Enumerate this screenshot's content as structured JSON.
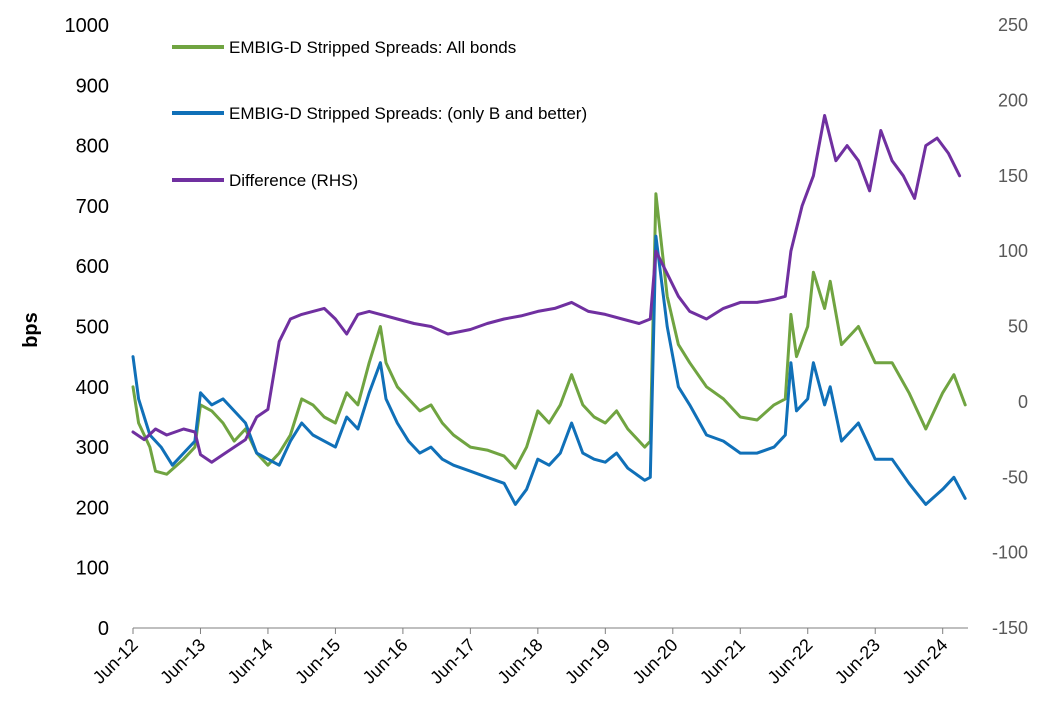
{
  "chart_data": {
    "type": "line",
    "title": "",
    "ylabel": "bps",
    "ylabel_right": "",
    "ylim": [
      0,
      1000
    ],
    "ylim_right": [
      -150,
      250
    ],
    "yticks_left": [
      "0",
      "100",
      "200",
      "300",
      "400",
      "500",
      "600",
      "700",
      "800",
      "900",
      "1000"
    ],
    "yticks_right": [
      "-150",
      "-100",
      "-50",
      "0",
      "50",
      "100",
      "150",
      "200",
      "250"
    ],
    "x_labels": [
      "Jun-12",
      "Jun-13",
      "Jun-14",
      "Jun-15",
      "Jun-16",
      "Jun-17",
      "Jun-18",
      "Jun-19",
      "Jun-20",
      "Jun-21",
      "Jun-22",
      "Jun-23",
      "Jun-24"
    ],
    "grid": false,
    "legend_position": "top-left",
    "series": [
      {
        "name": "EMBIG-D Stripped Spreads: All bonds",
        "axis": "left",
        "color": "#70a441",
        "points": [
          [
            "2012-06",
            400
          ],
          [
            "2012-07",
            340
          ],
          [
            "2012-09",
            300
          ],
          [
            "2012-10",
            260
          ],
          [
            "2012-12",
            255
          ],
          [
            "2013-03",
            280
          ],
          [
            "2013-05",
            300
          ],
          [
            "2013-06",
            370
          ],
          [
            "2013-08",
            360
          ],
          [
            "2013-10",
            340
          ],
          [
            "2013-12",
            310
          ],
          [
            "2014-02",
            330
          ],
          [
            "2014-04",
            290
          ],
          [
            "2014-06",
            270
          ],
          [
            "2014-08",
            290
          ],
          [
            "2014-10",
            320
          ],
          [
            "2014-12",
            380
          ],
          [
            "2015-02",
            370
          ],
          [
            "2015-04",
            350
          ],
          [
            "2015-06",
            340
          ],
          [
            "2015-08",
            390
          ],
          [
            "2015-10",
            370
          ],
          [
            "2015-12",
            440
          ],
          [
            "2016-02",
            500
          ],
          [
            "2016-03",
            440
          ],
          [
            "2016-05",
            400
          ],
          [
            "2016-07",
            380
          ],
          [
            "2016-09",
            360
          ],
          [
            "2016-11",
            370
          ],
          [
            "2017-01",
            340
          ],
          [
            "2017-03",
            320
          ],
          [
            "2017-06",
            300
          ],
          [
            "2017-09",
            295
          ],
          [
            "2017-12",
            285
          ],
          [
            "2018-02",
            265
          ],
          [
            "2018-04",
            300
          ],
          [
            "2018-06",
            360
          ],
          [
            "2018-08",
            340
          ],
          [
            "2018-10",
            370
          ],
          [
            "2018-12",
            420
          ],
          [
            "2019-02",
            370
          ],
          [
            "2019-04",
            350
          ],
          [
            "2019-06",
            340
          ],
          [
            "2019-08",
            360
          ],
          [
            "2019-10",
            330
          ],
          [
            "2020-01",
            300
          ],
          [
            "2020-02",
            310
          ],
          [
            "2020-03",
            720
          ],
          [
            "2020-05",
            550
          ],
          [
            "2020-07",
            470
          ],
          [
            "2020-09",
            440
          ],
          [
            "2020-12",
            400
          ],
          [
            "2021-03",
            380
          ],
          [
            "2021-06",
            350
          ],
          [
            "2021-09",
            345
          ],
          [
            "2021-12",
            370
          ],
          [
            "2022-02",
            380
          ],
          [
            "2022-03",
            520
          ],
          [
            "2022-04",
            450
          ],
          [
            "2022-06",
            500
          ],
          [
            "2022-07",
            590
          ],
          [
            "2022-09",
            530
          ],
          [
            "2022-10",
            575
          ],
          [
            "2022-12",
            470
          ],
          [
            "2023-03",
            500
          ],
          [
            "2023-06",
            440
          ],
          [
            "2023-09",
            440
          ],
          [
            "2023-12",
            390
          ],
          [
            "2024-03",
            330
          ],
          [
            "2024-06",
            390
          ],
          [
            "2024-08",
            420
          ],
          [
            "2024-10",
            370
          ]
        ]
      },
      {
        "name": "EMBIG-D Stripped Spreads: (only B and better)",
        "axis": "left",
        "color": "#1070b8",
        "points": [
          [
            "2012-06",
            450
          ],
          [
            "2012-07",
            380
          ],
          [
            "2012-09",
            320
          ],
          [
            "2012-11",
            300
          ],
          [
            "2013-01",
            270
          ],
          [
            "2013-03",
            290
          ],
          [
            "2013-05",
            310
          ],
          [
            "2013-06",
            390
          ],
          [
            "2013-08",
            370
          ],
          [
            "2013-10",
            380
          ],
          [
            "2013-12",
            360
          ],
          [
            "2014-02",
            340
          ],
          [
            "2014-04",
            290
          ],
          [
            "2014-06",
            280
          ],
          [
            "2014-08",
            270
          ],
          [
            "2014-10",
            310
          ],
          [
            "2014-12",
            340
          ],
          [
            "2015-02",
            320
          ],
          [
            "2015-04",
            310
          ],
          [
            "2015-06",
            300
          ],
          [
            "2015-08",
            350
          ],
          [
            "2015-10",
            330
          ],
          [
            "2015-12",
            390
          ],
          [
            "2016-02",
            440
          ],
          [
            "2016-03",
            380
          ],
          [
            "2016-05",
            340
          ],
          [
            "2016-07",
            310
          ],
          [
            "2016-09",
            290
          ],
          [
            "2016-11",
            300
          ],
          [
            "2017-01",
            280
          ],
          [
            "2017-03",
            270
          ],
          [
            "2017-06",
            260
          ],
          [
            "2017-09",
            250
          ],
          [
            "2017-12",
            240
          ],
          [
            "2018-02",
            205
          ],
          [
            "2018-04",
            230
          ],
          [
            "2018-06",
            280
          ],
          [
            "2018-08",
            270
          ],
          [
            "2018-10",
            290
          ],
          [
            "2018-12",
            340
          ],
          [
            "2019-02",
            290
          ],
          [
            "2019-04",
            280
          ],
          [
            "2019-06",
            275
          ],
          [
            "2019-08",
            290
          ],
          [
            "2019-10",
            265
          ],
          [
            "2020-01",
            245
          ],
          [
            "2020-02",
            250
          ],
          [
            "2020-03",
            650
          ],
          [
            "2020-05",
            500
          ],
          [
            "2020-07",
            400
          ],
          [
            "2020-09",
            370
          ],
          [
            "2020-12",
            320
          ],
          [
            "2021-03",
            310
          ],
          [
            "2021-06",
            290
          ],
          [
            "2021-09",
            290
          ],
          [
            "2021-12",
            300
          ],
          [
            "2022-02",
            320
          ],
          [
            "2022-03",
            440
          ],
          [
            "2022-04",
            360
          ],
          [
            "2022-06",
            380
          ],
          [
            "2022-07",
            440
          ],
          [
            "2022-09",
            370
          ],
          [
            "2022-10",
            400
          ],
          [
            "2022-12",
            310
          ],
          [
            "2023-03",
            340
          ],
          [
            "2023-06",
            280
          ],
          [
            "2023-09",
            280
          ],
          [
            "2023-12",
            240
          ],
          [
            "2024-03",
            205
          ],
          [
            "2024-06",
            230
          ],
          [
            "2024-08",
            250
          ],
          [
            "2024-10",
            215
          ]
        ]
      },
      {
        "name": "Difference (RHS)",
        "axis": "right",
        "color": "#7030a0",
        "points": [
          [
            "2012-06",
            -20
          ],
          [
            "2012-08",
            -25
          ],
          [
            "2012-10",
            -18
          ],
          [
            "2012-12",
            -22
          ],
          [
            "2013-03",
            -18
          ],
          [
            "2013-05",
            -20
          ],
          [
            "2013-06",
            -35
          ],
          [
            "2013-08",
            -40
          ],
          [
            "2013-10",
            -35
          ],
          [
            "2013-12",
            -30
          ],
          [
            "2014-02",
            -25
          ],
          [
            "2014-04",
            -10
          ],
          [
            "2014-06",
            -5
          ],
          [
            "2014-08",
            40
          ],
          [
            "2014-10",
            55
          ],
          [
            "2014-12",
            58
          ],
          [
            "2015-02",
            60
          ],
          [
            "2015-04",
            62
          ],
          [
            "2015-06",
            55
          ],
          [
            "2015-08",
            45
          ],
          [
            "2015-10",
            58
          ],
          [
            "2015-12",
            60
          ],
          [
            "2016-02",
            58
          ],
          [
            "2016-05",
            55
          ],
          [
            "2016-08",
            52
          ],
          [
            "2016-11",
            50
          ],
          [
            "2017-02",
            45
          ],
          [
            "2017-06",
            48
          ],
          [
            "2017-09",
            52
          ],
          [
            "2017-12",
            55
          ],
          [
            "2018-03",
            57
          ],
          [
            "2018-06",
            60
          ],
          [
            "2018-09",
            62
          ],
          [
            "2018-12",
            66
          ],
          [
            "2019-03",
            60
          ],
          [
            "2019-06",
            58
          ],
          [
            "2019-09",
            55
          ],
          [
            "2019-12",
            52
          ],
          [
            "2020-02",
            55
          ],
          [
            "2020-03",
            100
          ],
          [
            "2020-05",
            85
          ],
          [
            "2020-07",
            70
          ],
          [
            "2020-09",
            60
          ],
          [
            "2020-12",
            55
          ],
          [
            "2021-03",
            62
          ],
          [
            "2021-06",
            66
          ],
          [
            "2021-09",
            66
          ],
          [
            "2021-12",
            68
          ],
          [
            "2022-02",
            70
          ],
          [
            "2022-03",
            100
          ],
          [
            "2022-05",
            130
          ],
          [
            "2022-07",
            150
          ],
          [
            "2022-09",
            190
          ],
          [
            "2022-11",
            160
          ],
          [
            "2023-01",
            170
          ],
          [
            "2023-03",
            160
          ],
          [
            "2023-05",
            140
          ],
          [
            "2023-07",
            180
          ],
          [
            "2023-09",
            160
          ],
          [
            "2023-11",
            150
          ],
          [
            "2024-01",
            135
          ],
          [
            "2024-03",
            170
          ],
          [
            "2024-05",
            175
          ],
          [
            "2024-07",
            165
          ],
          [
            "2024-09",
            150
          ]
        ]
      }
    ]
  }
}
